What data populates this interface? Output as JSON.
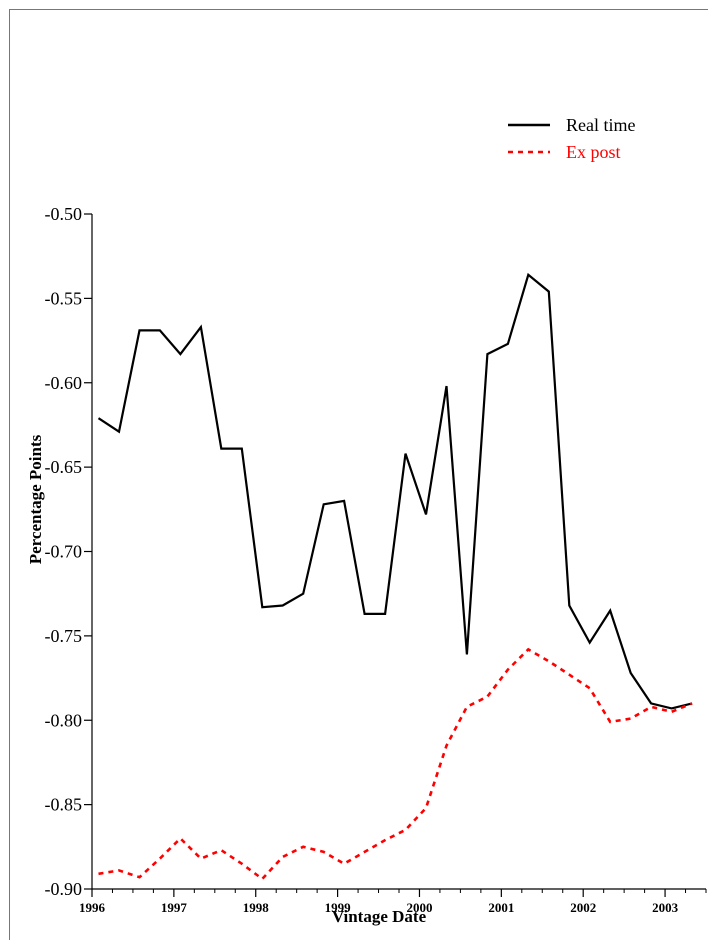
{
  "chart_data": {
    "type": "line",
    "xlabel": "Vintage Date",
    "ylabel": "Percentage Points",
    "ylim": [
      -0.9,
      -0.5
    ],
    "xlim": [
      1996.0,
      2003.5
    ],
    "y_ticks": [
      "-0.50",
      "-0.55",
      "-0.60",
      "-0.65",
      "-0.70",
      "-0.75",
      "-0.80",
      "-0.85",
      "-0.90"
    ],
    "y_tick_values": [
      -0.5,
      -0.55,
      -0.6,
      -0.65,
      -0.7,
      -0.75,
      -0.8,
      -0.85,
      -0.9
    ],
    "x_ticks": [
      "1996",
      "1997",
      "1998",
      "1999",
      "2000",
      "2001",
      "2002",
      "2003"
    ],
    "x_tick_values": [
      1996,
      1997,
      1998,
      1999,
      2000,
      2001,
      2002,
      2003
    ],
    "grid": false,
    "legend": "top-right",
    "series": [
      {
        "name": "Real time",
        "color": "#000000",
        "dash": "solid",
        "x": [
          1996.08,
          1996.33,
          1996.58,
          1996.83,
          1997.08,
          1997.33,
          1997.58,
          1997.83,
          1998.08,
          1998.33,
          1998.58,
          1998.83,
          1999.08,
          1999.33,
          1999.58,
          1999.83,
          2000.08,
          2000.33,
          2000.58,
          2000.83,
          2001.08,
          2001.33,
          2001.58,
          2001.83,
          2002.08,
          2002.33,
          2002.58,
          2002.83,
          2003.08,
          2003.33
        ],
        "y": [
          -0.621,
          -0.629,
          -0.569,
          -0.569,
          -0.583,
          -0.567,
          -0.639,
          -0.639,
          -0.733,
          -0.732,
          -0.725,
          -0.672,
          -0.67,
          -0.737,
          -0.737,
          -0.642,
          -0.678,
          -0.602,
          -0.761,
          -0.583,
          -0.577,
          -0.536,
          -0.546,
          -0.732,
          -0.754,
          -0.735,
          -0.772,
          -0.79,
          -0.793,
          -0.79
        ]
      },
      {
        "name": "Ex post",
        "color": "#ff0000",
        "dash": "dashed",
        "x": [
          1996.08,
          1996.33,
          1996.58,
          1996.83,
          1997.08,
          1997.33,
          1997.58,
          1997.83,
          1998.08,
          1998.33,
          1998.58,
          1998.83,
          1999.08,
          1999.33,
          1999.58,
          1999.83,
          2000.08,
          2000.33,
          2000.58,
          2000.83,
          2001.08,
          2001.33,
          2001.58,
          2001.83,
          2002.08,
          2002.33,
          2002.58,
          2002.83,
          2003.08,
          2003.33
        ],
        "y": [
          -0.891,
          -0.889,
          -0.893,
          -0.882,
          -0.87,
          -0.882,
          -0.877,
          -0.885,
          -0.894,
          -0.881,
          -0.875,
          -0.878,
          -0.885,
          -0.878,
          -0.871,
          -0.865,
          -0.852,
          -0.815,
          -0.792,
          -0.786,
          -0.77,
          -0.758,
          -0.765,
          -0.773,
          -0.781,
          -0.801,
          -0.799,
          -0.792,
          -0.795,
          -0.79
        ]
      }
    ]
  }
}
